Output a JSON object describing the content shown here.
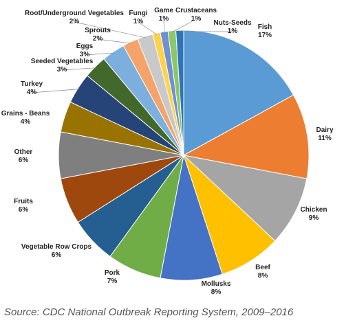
{
  "chart_data": {
    "type": "pie",
    "start_angle_deg": 0,
    "direction": "clockwise",
    "slices": [
      {
        "label": "Fish",
        "value": 17,
        "value_label": "17%",
        "color": "#5B9BD5"
      },
      {
        "label": "Dairy",
        "value": 11,
        "value_label": "11%",
        "color": "#ED7D31"
      },
      {
        "label": "Chicken",
        "value": 9,
        "value_label": "9%",
        "color": "#A5A5A5"
      },
      {
        "label": "Beef",
        "value": 8,
        "value_label": "8%",
        "color": "#FFC000"
      },
      {
        "label": "Mollusks",
        "value": 8,
        "value_label": "8%",
        "color": "#4472C4"
      },
      {
        "label": "Pork",
        "value": 7,
        "value_label": "7%",
        "color": "#70AD47"
      },
      {
        "label": "Vegetable Row Crops",
        "value": 6,
        "value_label": "6%",
        "color": "#255E91"
      },
      {
        "label": "Fruits",
        "value": 6,
        "value_label": "6%",
        "color": "#9E480E"
      },
      {
        "label": "Other",
        "value": 6,
        "value_label": "6%",
        "color": "#7F7F7F"
      },
      {
        "label": "Grains - Beans",
        "value": 4,
        "value_label": "4%",
        "color": "#997300"
      },
      {
        "label": "Turkey",
        "value": 4,
        "value_label": "4%",
        "color": "#264478"
      },
      {
        "label": "Seeded Vegetables",
        "value": 3,
        "value_label": "3%",
        "color": "#43682B"
      },
      {
        "label": "Eggs",
        "value": 3,
        "value_label": "3%",
        "color": "#7CAFDD"
      },
      {
        "label": "Sprouts",
        "value": 2,
        "value_label": "2%",
        "color": "#F4A46A"
      },
      {
        "label": "Root/Underground Vegetables",
        "value": 2,
        "value_label": "2%",
        "color": "#C9C9C9"
      },
      {
        "label": "Fungi",
        "value": 1,
        "value_label": "1%",
        "color": "#FFD24A"
      },
      {
        "label": "Game",
        "value": 1,
        "value_label": "1%",
        "color": "#6F91D1"
      },
      {
        "label": "Crustaceans",
        "value": 1,
        "value_label": "1%",
        "color": "#8DC66A"
      },
      {
        "label": "Nuts-Seeds",
        "value": 1,
        "value_label": "1%",
        "color": "#2E75B6"
      }
    ]
  },
  "source": "Source: CDC National Outbreak Reporting System, 2009–2016"
}
